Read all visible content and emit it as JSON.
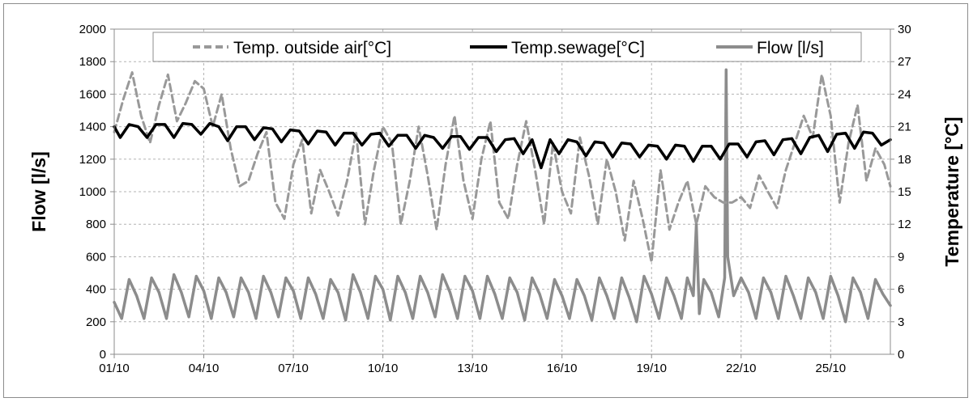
{
  "chart_data": {
    "type": "line",
    "x_categories": [
      "01/10",
      "04/10",
      "07/10",
      "10/10",
      "13/10",
      "16/10",
      "19/10",
      "22/10",
      "25/10"
    ],
    "x_start_day": 1,
    "x_end_day": 27,
    "ylabel": "Flow [l/s]",
    "y2label": "Temperature [°C]",
    "ylim": [
      0,
      2000
    ],
    "y_ticks": [
      "0",
      "200",
      "400",
      "600",
      "800",
      "1000",
      "1200",
      "1400",
      "1600",
      "1800",
      "2000"
    ],
    "y2lim": [
      0,
      30
    ],
    "y2_ticks": [
      "0",
      "3",
      "6",
      "9",
      "12",
      "15",
      "18",
      "21",
      "24",
      "27",
      "30"
    ],
    "grid": true,
    "legend_position": "top",
    "series": [
      {
        "name": "Temp. outside air[°C]",
        "axis": "right",
        "color": "#999999",
        "style": "dashed",
        "x": [
          1.0,
          1.3,
          1.6,
          1.9,
          2.2,
          2.5,
          2.8,
          3.1,
          3.4,
          3.7,
          4.0,
          4.3,
          4.6,
          4.9,
          5.2,
          5.5,
          5.8,
          6.1,
          6.4,
          6.7,
          7.0,
          7.3,
          7.6,
          7.9,
          8.2,
          8.5,
          8.8,
          9.1,
          9.4,
          9.7,
          10.0,
          10.3,
          10.6,
          10.9,
          11.2,
          11.5,
          11.8,
          12.1,
          12.4,
          12.7,
          13.0,
          13.3,
          13.6,
          13.9,
          14.2,
          14.5,
          14.8,
          15.1,
          15.4,
          15.7,
          16.0,
          16.3,
          16.6,
          16.9,
          17.2,
          17.5,
          17.8,
          18.1,
          18.4,
          18.7,
          19.0,
          19.3,
          19.6,
          19.9,
          20.2,
          20.5,
          20.8,
          21.1,
          21.4,
          21.7,
          22.0,
          22.3,
          22.6,
          22.9,
          23.2,
          23.5,
          23.8,
          24.1,
          24.4,
          24.7,
          25.0,
          25.3,
          25.6,
          25.9,
          26.2,
          26.5,
          26.8,
          27.0
        ],
        "y": [
          20.5,
          23.5,
          26.0,
          22.0,
          19.5,
          23.0,
          25.8,
          21.5,
          23.2,
          25.2,
          24.5,
          21.0,
          24.0,
          19.0,
          15.5,
          16.0,
          18.5,
          20.5,
          14.0,
          12.5,
          17.5,
          19.8,
          13.0,
          17.0,
          15.0,
          12.8,
          16.0,
          20.5,
          12.0,
          17.0,
          21.0,
          19.5,
          12.0,
          16.0,
          21.0,
          16.5,
          11.5,
          17.5,
          22.0,
          16.0,
          12.5,
          18.0,
          21.5,
          14.0,
          12.5,
          17.5,
          21.5,
          17.0,
          12.0,
          19.5,
          15.0,
          13.0,
          20.0,
          16.5,
          12.0,
          18.0,
          15.0,
          10.5,
          16.0,
          12.5,
          8.5,
          17.0,
          11.5,
          14.0,
          16.0,
          12.0,
          15.5,
          14.5,
          14.0,
          14.0,
          14.5,
          13.5,
          16.5,
          15.0,
          13.5,
          17.0,
          19.5,
          22.0,
          20.0,
          25.8,
          22.0,
          14.0,
          19.5,
          23.0,
          16.0,
          19.0,
          17.5,
          15.5
        ]
      },
      {
        "name": "Temp.sewage[°C]",
        "axis": "right",
        "color": "#000000",
        "style": "solid",
        "x": [
          1.0,
          1.2,
          1.5,
          1.8,
          2.1,
          2.4,
          2.7,
          3.0,
          3.3,
          3.6,
          3.9,
          4.2,
          4.5,
          4.8,
          5.1,
          5.4,
          5.7,
          6.0,
          6.3,
          6.6,
          6.9,
          7.2,
          7.5,
          7.8,
          8.1,
          8.4,
          8.7,
          9.0,
          9.3,
          9.6,
          9.9,
          10.2,
          10.5,
          10.8,
          11.1,
          11.4,
          11.7,
          12.0,
          12.3,
          12.6,
          12.9,
          13.2,
          13.5,
          13.8,
          14.1,
          14.4,
          14.7,
          15.0,
          15.3,
          15.6,
          15.9,
          16.2,
          16.5,
          16.8,
          17.1,
          17.4,
          17.7,
          18.0,
          18.3,
          18.6,
          18.9,
          19.2,
          19.5,
          19.8,
          20.1,
          20.4,
          20.7,
          21.0,
          21.3,
          21.6,
          21.9,
          22.2,
          22.5,
          22.8,
          23.1,
          23.4,
          23.7,
          24.0,
          24.3,
          24.6,
          24.9,
          25.2,
          25.5,
          25.8,
          26.1,
          26.4,
          26.7,
          27.0
        ],
        "y": [
          21.0,
          20.0,
          21.2,
          21.0,
          20.0,
          21.2,
          21.2,
          20.0,
          21.3,
          21.2,
          20.3,
          21.3,
          21.0,
          19.7,
          21.0,
          21.0,
          19.8,
          20.9,
          20.8,
          19.6,
          20.7,
          20.6,
          19.4,
          20.6,
          20.5,
          19.3,
          20.4,
          20.4,
          19.3,
          20.3,
          20.4,
          19.2,
          20.2,
          20.2,
          19.0,
          20.2,
          20.0,
          19.0,
          20.1,
          20.1,
          18.9,
          20.0,
          20.0,
          18.7,
          19.8,
          19.9,
          18.5,
          19.8,
          17.2,
          19.8,
          18.5,
          19.8,
          19.6,
          18.3,
          19.6,
          19.5,
          18.2,
          19.5,
          19.4,
          18.2,
          19.3,
          19.2,
          18.0,
          19.3,
          19.2,
          17.8,
          19.2,
          19.2,
          18.0,
          19.4,
          19.4,
          18.2,
          19.6,
          19.7,
          18.4,
          19.8,
          19.9,
          18.5,
          20.0,
          20.2,
          18.7,
          20.3,
          20.4,
          19.0,
          20.5,
          20.4,
          19.3,
          19.8
        ]
      },
      {
        "name": "Flow [l/s]",
        "axis": "left",
        "color": "#8c8c8c",
        "style": "solid",
        "x": [
          1.0,
          1.25,
          1.5,
          1.75,
          2.0,
          2.25,
          2.5,
          2.75,
          3.0,
          3.25,
          3.5,
          3.75,
          4.0,
          4.25,
          4.5,
          4.75,
          5.0,
          5.25,
          5.5,
          5.75,
          6.0,
          6.25,
          6.5,
          6.75,
          7.0,
          7.25,
          7.5,
          7.75,
          8.0,
          8.25,
          8.5,
          8.75,
          9.0,
          9.25,
          9.5,
          9.75,
          10.0,
          10.25,
          10.5,
          10.75,
          11.0,
          11.25,
          11.5,
          11.75,
          12.0,
          12.25,
          12.5,
          12.75,
          13.0,
          13.25,
          13.5,
          13.75,
          14.0,
          14.25,
          14.5,
          14.75,
          15.0,
          15.25,
          15.5,
          15.75,
          16.0,
          16.25,
          16.5,
          16.75,
          17.0,
          17.25,
          17.5,
          17.75,
          18.0,
          18.25,
          18.5,
          18.75,
          19.0,
          19.25,
          19.5,
          19.75,
          20.0,
          20.2,
          20.4,
          20.5,
          20.6,
          20.75,
          21.0,
          21.25,
          21.45,
          21.5,
          21.55,
          21.75,
          22.0,
          22.25,
          22.5,
          22.75,
          23.0,
          23.25,
          23.5,
          23.75,
          24.0,
          24.25,
          24.5,
          24.75,
          25.0,
          25.25,
          25.5,
          25.75,
          26.0,
          26.25,
          26.5,
          26.75,
          27.0
        ],
        "y": [
          320,
          220,
          460,
          360,
          220,
          470,
          380,
          220,
          490,
          380,
          230,
          480,
          390,
          220,
          470,
          380,
          230,
          470,
          380,
          220,
          480,
          380,
          230,
          470,
          390,
          220,
          470,
          370,
          220,
          460,
          380,
          210,
          490,
          380,
          220,
          480,
          400,
          210,
          480,
          380,
          220,
          480,
          380,
          230,
          490,
          380,
          220,
          480,
          390,
          220,
          480,
          370,
          220,
          470,
          380,
          210,
          470,
          370,
          220,
          460,
          360,
          220,
          460,
          360,
          210,
          470,
          360,
          220,
          470,
          350,
          200,
          480,
          370,
          220,
          470,
          360,
          220,
          470,
          360,
          800,
          250,
          460,
          380,
          230,
          470,
          1750,
          600,
          360,
          470,
          380,
          220,
          470,
          380,
          220,
          480,
          360,
          220,
          470,
          380,
          220,
          480,
          360,
          200,
          470,
          380,
          220,
          460,
          370,
          300
        ]
      }
    ]
  }
}
